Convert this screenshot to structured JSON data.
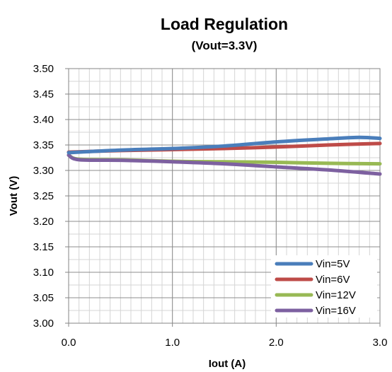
{
  "chart_data": {
    "type": "line",
    "title": "Load Regulation",
    "subtitle": "(Vout=3.3V)",
    "xlabel": "Iout (A)",
    "ylabel": "Vout (V)",
    "xlim": [
      0.0,
      3.0
    ],
    "ylim": [
      3.0,
      3.5
    ],
    "x_major_ticks": [
      "0.0",
      "1.0",
      "2.0",
      "3.0"
    ],
    "x_major_values": [
      0,
      1,
      2,
      3
    ],
    "x_minor_step": 0.1,
    "y_ticks": [
      "3.00",
      "3.05",
      "3.10",
      "3.15",
      "3.20",
      "3.25",
      "3.30",
      "3.35",
      "3.40",
      "3.45",
      "3.50"
    ],
    "y_ticks_values": [
      3.0,
      3.05,
      3.1,
      3.15,
      3.2,
      3.25,
      3.3,
      3.35,
      3.4,
      3.45,
      3.5
    ],
    "y_minor_step": 0.025,
    "grid": true,
    "legend_position": "bottom-right",
    "series": [
      {
        "name": "Vin=5V",
        "color": "#4A7EBB",
        "points": [
          [
            0.0,
            3.335
          ],
          [
            0.5,
            3.34
          ],
          [
            1.0,
            3.343
          ],
          [
            1.5,
            3.348
          ],
          [
            2.0,
            3.356
          ],
          [
            2.5,
            3.362
          ],
          [
            2.8,
            3.365
          ],
          [
            3.0,
            3.363
          ]
        ]
      },
      {
        "name": "Vin=6V",
        "color": "#BE4B48",
        "points": [
          [
            0.0,
            3.336
          ],
          [
            0.5,
            3.339
          ],
          [
            1.0,
            3.341
          ],
          [
            1.5,
            3.343
          ],
          [
            2.0,
            3.346
          ],
          [
            2.5,
            3.35
          ],
          [
            3.0,
            3.353
          ]
        ]
      },
      {
        "name": "Vin=12V",
        "color": "#98B954",
        "points": [
          [
            0.0,
            3.33
          ],
          [
            0.1,
            3.322
          ],
          [
            0.5,
            3.321
          ],
          [
            1.0,
            3.318
          ],
          [
            1.5,
            3.317
          ],
          [
            2.0,
            3.316
          ],
          [
            2.5,
            3.314
          ],
          [
            3.0,
            3.313
          ]
        ]
      },
      {
        "name": "Vin=16V",
        "color": "#7D60A0",
        "points": [
          [
            0.0,
            3.33
          ],
          [
            0.1,
            3.321
          ],
          [
            0.5,
            3.32
          ],
          [
            1.0,
            3.317
          ],
          [
            1.5,
            3.313
          ],
          [
            2.0,
            3.307
          ],
          [
            2.5,
            3.301
          ],
          [
            3.0,
            3.293
          ]
        ]
      }
    ]
  }
}
